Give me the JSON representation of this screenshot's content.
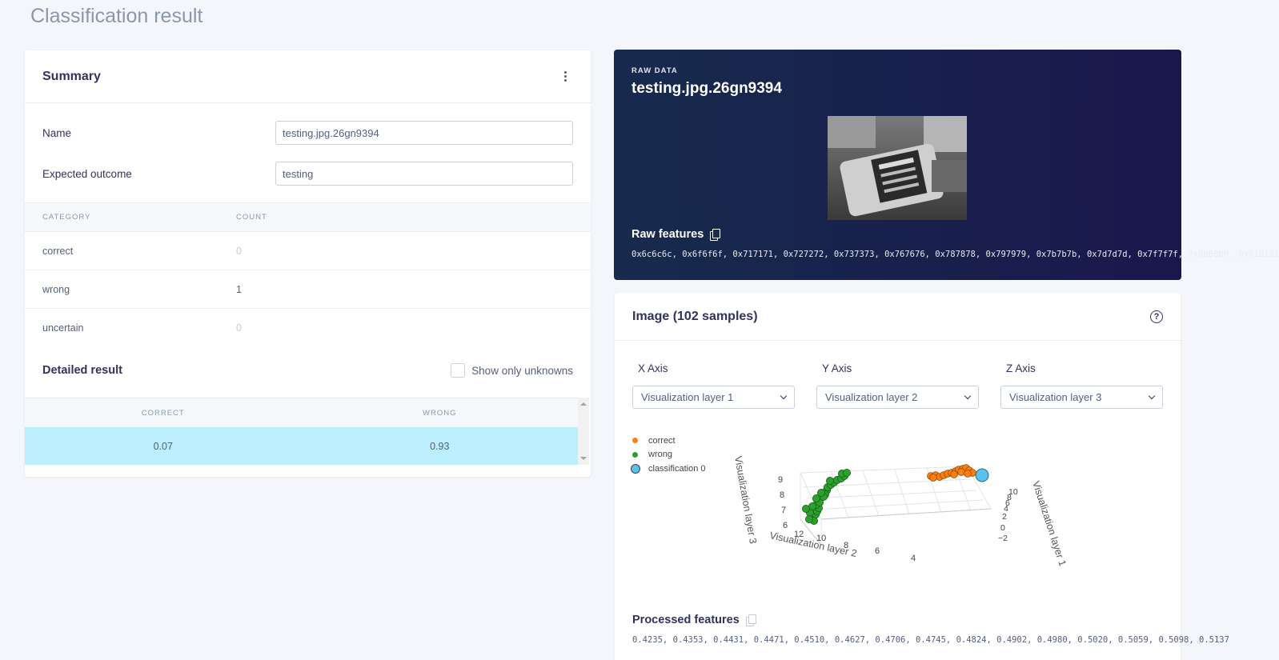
{
  "page": {
    "title": "Classification result"
  },
  "summary": {
    "title": "Summary",
    "name_label": "Name",
    "name_value": "testing.jpg.26gn9394",
    "expected_label": "Expected outcome",
    "expected_value": "testing",
    "category_header": "CATEGORY",
    "count_header": "COUNT",
    "categories": [
      {
        "name": "correct",
        "count": "0"
      },
      {
        "name": "wrong",
        "count": "1"
      },
      {
        "name": "uncertain",
        "count": "0"
      }
    ],
    "detailed_title": "Detailed result",
    "show_unknowns_label": "Show only unknowns",
    "result_headers": [
      "CORRECT",
      "WRONG"
    ],
    "result_row": [
      "0.07",
      "0.93"
    ]
  },
  "raw_data": {
    "label": "RAW DATA",
    "title": "testing.jpg.26gn9394",
    "features_label": "Raw features",
    "features_value": "0x6c6c6c, 0x6f6f6f, 0x717171, 0x727272, 0x737373, 0x767676, 0x787878, 0x797979, 0x7b7b7b, 0x7d7d7d, 0x7f7f7f, 0x808080, 0x818181"
  },
  "visualization": {
    "title": "Image (102 samples)",
    "x_axis_label": "X Axis",
    "y_axis_label": "Y Axis",
    "z_axis_label": "Z Axis",
    "x_axis_value": "Visualization layer 1",
    "y_axis_value": "Visualization layer 2",
    "z_axis_value": "Visualization layer 3",
    "legend": [
      {
        "name": "correct",
        "color": "#ff7f0e"
      },
      {
        "name": "wrong",
        "color": "#2ca02c"
      },
      {
        "name": "classification 0",
        "color": "#5bc0eb"
      }
    ],
    "axis_titles": {
      "x": "Visualization layer 1",
      "y": "Visualization layer 2",
      "z": "Visualization layer 3"
    },
    "z_ticks": [
      "9",
      "8",
      "7",
      "6"
    ],
    "y_ticks": [
      "12",
      "10",
      "8",
      "6",
      "4"
    ],
    "x_ticks": [
      "10",
      "8",
      "6",
      "4",
      "2",
      "0",
      "−2"
    ],
    "processed_label": "Processed features",
    "processed_value": "0.4235, 0.4353, 0.4431, 0.4471, 0.4510, 0.4627, 0.4706, 0.4745, 0.4824, 0.4902, 0.4980, 0.5020, 0.5059, 0.5098, 0.5137"
  }
}
